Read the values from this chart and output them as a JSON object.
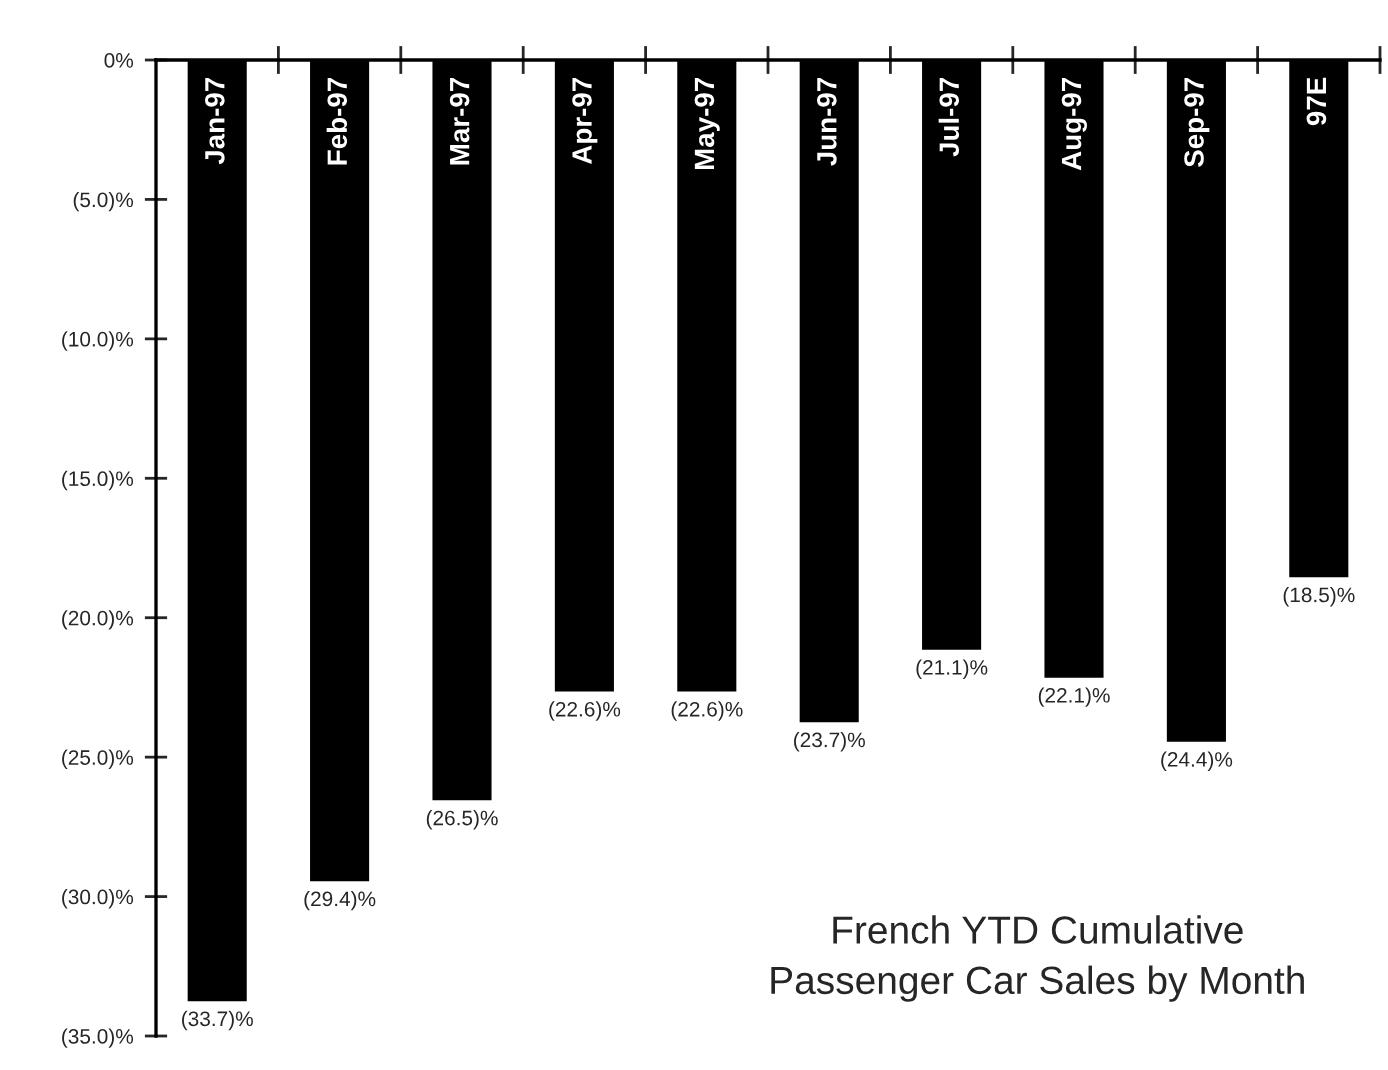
{
  "chart_data": {
    "type": "bar",
    "title": "French YTD Cumulative\nPassenger Car Sales by Month",
    "categories": [
      "Jan-97",
      "Feb-97",
      "Mar-97",
      "Apr-97",
      "May-97",
      "Jun-97",
      "Jul-97",
      "Aug-97",
      "Sep-97",
      "97E"
    ],
    "values": [
      -33.7,
      -29.4,
      -26.5,
      -22.6,
      -22.6,
      -23.7,
      -21.1,
      -22.1,
      -24.4,
      -18.5
    ],
    "value_labels": [
      "(33.7)%",
      "(29.4)%",
      "(26.5)%",
      "(22.6)%",
      "(22.6)%",
      "(23.7)%",
      "(21.1)%",
      "(22.1)%",
      "(24.4)%",
      "(18.5)%"
    ],
    "color": "#000000",
    "ylim": [
      -35,
      0
    ],
    "yticks": [
      {
        "value": 0,
        "label": "0%"
      },
      {
        "value": -5,
        "label": "(5.0)%"
      },
      {
        "value": -10,
        "label": "(10.0)%"
      },
      {
        "value": -15,
        "label": "(15.0)%"
      },
      {
        "value": -20,
        "label": "(20.0)%"
      },
      {
        "value": -25,
        "label": "(25.0)%"
      },
      {
        "value": -30,
        "label": "(30.0)%"
      },
      {
        "value": -35,
        "label": "(35.0)%"
      }
    ],
    "grid": false,
    "legend": false
  }
}
